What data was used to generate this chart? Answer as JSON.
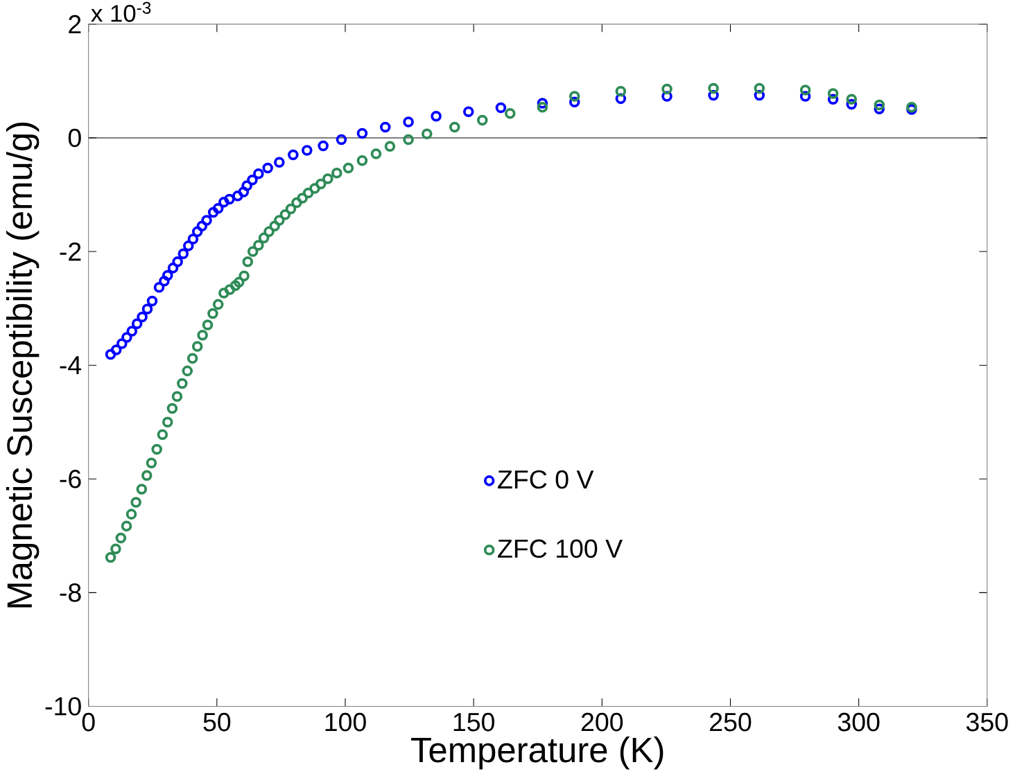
{
  "chart_data": {
    "type": "scatter",
    "xlabel": "Temperature (K)",
    "ylabel": "Magnetic Susceptibility (emu/g)",
    "annotations": [
      "x 10$^{-3}$"
    ],
    "xlim": [
      0,
      350
    ],
    "xticks": [
      0,
      50,
      100,
      150,
      200,
      250,
      300,
      350
    ],
    "ylim": [
      -10,
      2
    ],
    "yticks": [
      -10,
      -8,
      -6,
      -4,
      -2,
      0,
      2
    ],
    "marker": "circle",
    "legend": "center",
    "grid": false,
    "ref_lines": [
      {
        "axis": "y",
        "value": 0,
        "color": "#000000"
      }
    ],
    "series": [
      {
        "name": "ZFC 0 V",
        "color": "#0000ff",
        "x": [
          8.6,
          10.8,
          13.0,
          14.9,
          16.9,
          18.9,
          20.9,
          22.9,
          24.8,
          27.5,
          29.5,
          30.8,
          32.9,
          34.7,
          36.9,
          38.9,
          40.7,
          42.4,
          44.2,
          46.0,
          48.6,
          50.5,
          52.7,
          54.9,
          58.1,
          60.4,
          61.7,
          63.8,
          66.2,
          69.8,
          74.3,
          79.7,
          85.1,
          91.4,
          98.5,
          106.6,
          115.6,
          124.6,
          135.4,
          148.0,
          160.6,
          176.8,
          189.3,
          207.3,
          225.3,
          243.4,
          261.3,
          279.2,
          290.0,
          297.2,
          308.0,
          320.6
        ],
        "values": [
          -3.81,
          -3.73,
          -3.62,
          -3.51,
          -3.4,
          -3.27,
          -3.15,
          -3.01,
          -2.87,
          -2.63,
          -2.52,
          -2.42,
          -2.29,
          -2.18,
          -2.04,
          -1.9,
          -1.78,
          -1.65,
          -1.55,
          -1.45,
          -1.31,
          -1.24,
          -1.13,
          -1.08,
          -1.02,
          -0.95,
          -0.84,
          -0.74,
          -0.63,
          -0.53,
          -0.43,
          -0.3,
          -0.22,
          -0.14,
          -0.03,
          0.08,
          0.19,
          0.28,
          0.38,
          0.46,
          0.53,
          0.61,
          0.63,
          0.69,
          0.73,
          0.75,
          0.75,
          0.73,
          0.68,
          0.59,
          0.51,
          0.5
        ]
      },
      {
        "name": "ZFC 100 V",
        "color": "#2e8b57",
        "x": [
          8.6,
          10.6,
          12.6,
          14.8,
          16.7,
          18.5,
          20.7,
          22.7,
          24.5,
          26.6,
          28.8,
          30.8,
          32.6,
          34.5,
          36.5,
          38.5,
          40.5,
          42.4,
          44.4,
          46.4,
          48.4,
          50.5,
          52.7,
          55.0,
          57.2,
          58.6,
          60.6,
          62.0,
          64.0,
          66.2,
          68.3,
          70.3,
          72.5,
          74.3,
          76.6,
          78.8,
          81.1,
          83.3,
          85.6,
          88.1,
          90.5,
          93.2,
          96.7,
          101.2,
          106.6,
          112.0,
          117.4,
          124.6,
          131.8,
          142.6,
          153.4,
          164.2,
          176.8,
          189.3,
          207.3,
          225.3,
          243.4,
          261.3,
          279.2,
          290.0,
          297.2,
          308.0,
          320.6
        ],
        "values": [
          -7.38,
          -7.23,
          -7.04,
          -6.83,
          -6.62,
          -6.41,
          -6.18,
          -5.94,
          -5.72,
          -5.48,
          -5.22,
          -5.0,
          -4.76,
          -4.55,
          -4.32,
          -4.1,
          -3.88,
          -3.67,
          -3.47,
          -3.29,
          -3.09,
          -2.93,
          -2.73,
          -2.67,
          -2.6,
          -2.54,
          -2.43,
          -2.18,
          -2.0,
          -1.89,
          -1.76,
          -1.65,
          -1.55,
          -1.45,
          -1.35,
          -1.25,
          -1.14,
          -1.06,
          -0.97,
          -0.89,
          -0.81,
          -0.72,
          -0.62,
          -0.53,
          -0.4,
          -0.28,
          -0.15,
          -0.03,
          0.07,
          0.19,
          0.31,
          0.43,
          0.54,
          0.73,
          0.82,
          0.86,
          0.87,
          0.87,
          0.84,
          0.78,
          0.68,
          0.58,
          0.54
        ]
      }
    ]
  }
}
